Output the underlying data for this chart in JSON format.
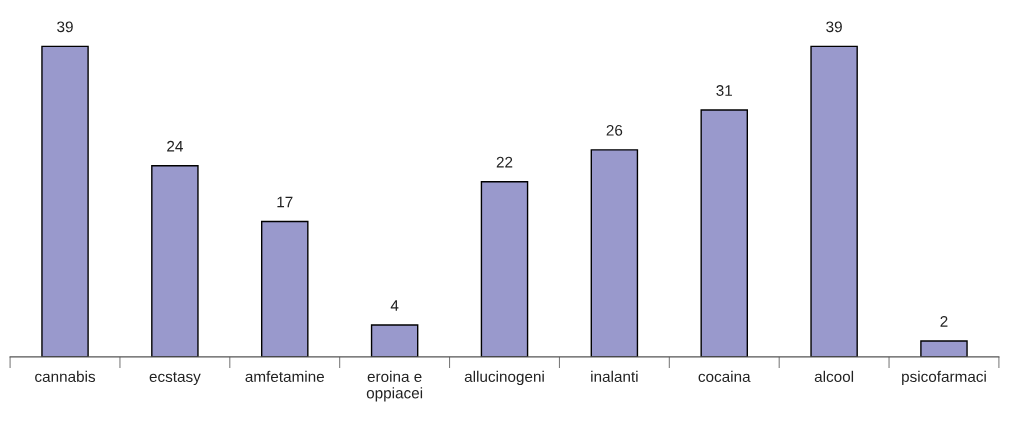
{
  "chart_data": {
    "type": "bar",
    "categories": [
      "cannabis",
      "ecstasy",
      "amfetamine",
      "eroina e\noppiacei",
      "allucinogeni",
      "inalanti",
      "cocaina",
      "alcool",
      "psicofarmaci"
    ],
    "values": [
      39,
      24,
      17,
      4,
      22,
      26,
      31,
      39,
      2
    ],
    "color": "#9999cc",
    "data_labels": true,
    "grid": false,
    "legend": false
  }
}
